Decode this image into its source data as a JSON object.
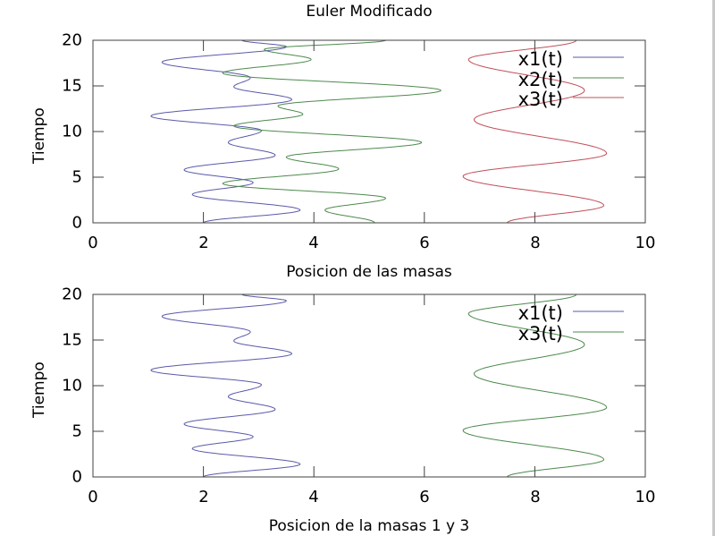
{
  "chart_data": [
    {
      "type": "line",
      "title": "Euler Modificado",
      "xlabel": "Posicion de las masas",
      "ylabel": "Tiempo",
      "xlim": [
        0,
        10
      ],
      "ylim": [
        0,
        20
      ],
      "xticks": [
        "0",
        "2",
        "4",
        "6",
        "8",
        "10"
      ],
      "yticks": [
        "0",
        "5",
        "10",
        "15",
        "20"
      ],
      "grid": false,
      "legend_position": "upper right",
      "orientation": "x is position, y is time",
      "series": [
        {
          "name": "x1(t)",
          "color": "#5a5aab",
          "points": [
            [
              2.0,
              0
            ],
            [
              3.75,
              1.4
            ],
            [
              1.8,
              3.1
            ],
            [
              2.9,
              4.4
            ],
            [
              1.65,
              5.8
            ],
            [
              3.3,
              7.4
            ],
            [
              2.45,
              8.8
            ],
            [
              3.05,
              10.1
            ],
            [
              1.05,
              11.7
            ],
            [
              3.6,
              13.5
            ],
            [
              2.55,
              14.9
            ],
            [
              2.85,
              15.9
            ],
            [
              1.25,
              17.6
            ],
            [
              3.5,
              19.3
            ],
            [
              2.7,
              20
            ]
          ]
        },
        {
          "name": "x2(t)",
          "color": "#4e8a4e",
          "points": [
            [
              5.1,
              0
            ],
            [
              4.2,
              1.4
            ],
            [
              5.3,
              2.7
            ],
            [
              2.35,
              4.3
            ],
            [
              4.45,
              5.9
            ],
            [
              3.5,
              7.2
            ],
            [
              5.95,
              8.8
            ],
            [
              2.55,
              10.6
            ],
            [
              3.8,
              11.9
            ],
            [
              3.35,
              12.8
            ],
            [
              6.3,
              14.5
            ],
            [
              2.35,
              16.4
            ],
            [
              3.95,
              17.9
            ],
            [
              3.1,
              19.0
            ],
            [
              5.3,
              20
            ]
          ]
        },
        {
          "name": "x3(t)",
          "color": "#c0505a",
          "points": [
            [
              7.5,
              0
            ],
            [
              9.25,
              1.9
            ],
            [
              6.7,
              5.1
            ],
            [
              9.3,
              7.6
            ],
            [
              6.9,
              11.3
            ],
            [
              8.9,
              14.5
            ],
            [
              6.8,
              17.9
            ],
            [
              8.75,
              20
            ]
          ]
        }
      ]
    },
    {
      "type": "line",
      "title": "",
      "xlabel": "Posicion de la masas 1 y 3",
      "ylabel": "Tiempo",
      "xlim": [
        0,
        10
      ],
      "ylim": [
        0,
        20
      ],
      "xticks": [
        "0",
        "2",
        "4",
        "6",
        "8",
        "10"
      ],
      "yticks": [
        "0",
        "5",
        "10",
        "15",
        "20"
      ],
      "grid": false,
      "legend_position": "upper right",
      "orientation": "x is position, y is time",
      "series": [
        {
          "name": "x1(t)",
          "color": "#5a5aab",
          "points": [
            [
              2.0,
              0
            ],
            [
              3.75,
              1.4
            ],
            [
              1.8,
              3.1
            ],
            [
              2.9,
              4.4
            ],
            [
              1.65,
              5.8
            ],
            [
              3.3,
              7.4
            ],
            [
              2.45,
              8.8
            ],
            [
              3.05,
              10.1
            ],
            [
              1.05,
              11.7
            ],
            [
              3.6,
              13.5
            ],
            [
              2.55,
              14.9
            ],
            [
              2.85,
              15.9
            ],
            [
              1.25,
              17.6
            ],
            [
              3.5,
              19.3
            ],
            [
              2.7,
              20
            ]
          ]
        },
        {
          "name": "x3(t)",
          "color": "#4e8a4e",
          "points": [
            [
              7.5,
              0
            ],
            [
              9.25,
              1.9
            ],
            [
              6.7,
              5.1
            ],
            [
              9.3,
              7.6
            ],
            [
              6.9,
              11.3
            ],
            [
              8.9,
              14.5
            ],
            [
              6.8,
              17.9
            ],
            [
              8.75,
              20
            ]
          ]
        }
      ]
    }
  ],
  "plots": {
    "top": {
      "title": "Euler Modificado",
      "xlabel": "Posicion de las masas",
      "ylabel": "Tiempo",
      "legend": [
        "x1(t)",
        "x2(t)",
        "x3(t)"
      ]
    },
    "bottom": {
      "xlabel": "Posicion de la masas 1 y 3",
      "ylabel": "Tiempo",
      "legend": [
        "x1(t)",
        "x3(t)"
      ]
    }
  },
  "colors": {
    "axis": "#404040",
    "x1": "#5a5aab",
    "x2": "#4e8a4e",
    "x3": "#c0505a"
  }
}
